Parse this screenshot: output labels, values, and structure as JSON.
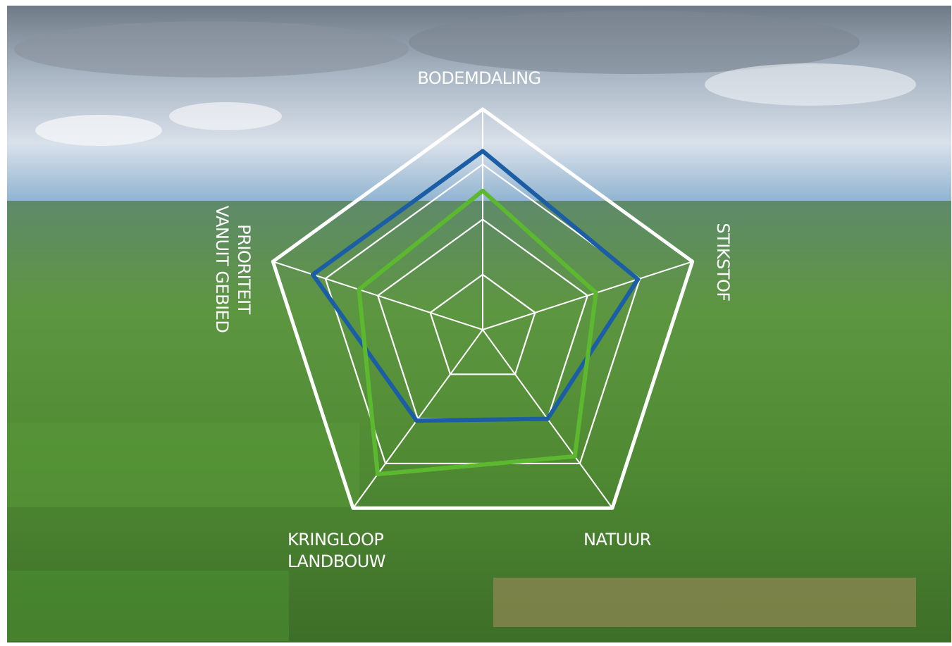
{
  "chart_data": {
    "type": "radar",
    "categories": [
      "BODEMDALING",
      "STIKSTOF",
      "NATUUR",
      "KRINGLOOP LANDBOUW",
      "PRIORITEIT VANUIT GEBIED"
    ],
    "rlim": [
      0,
      100
    ],
    "rticks": [
      25,
      50,
      75,
      100
    ],
    "grid": true,
    "series": [
      {
        "color": "#1b5ea6",
        "values": [
          81,
          74,
          50,
          51,
          81
        ]
      },
      {
        "color": "#5cb82f",
        "values": [
          63,
          54,
          71,
          81,
          59
        ]
      }
    ]
  }
}
